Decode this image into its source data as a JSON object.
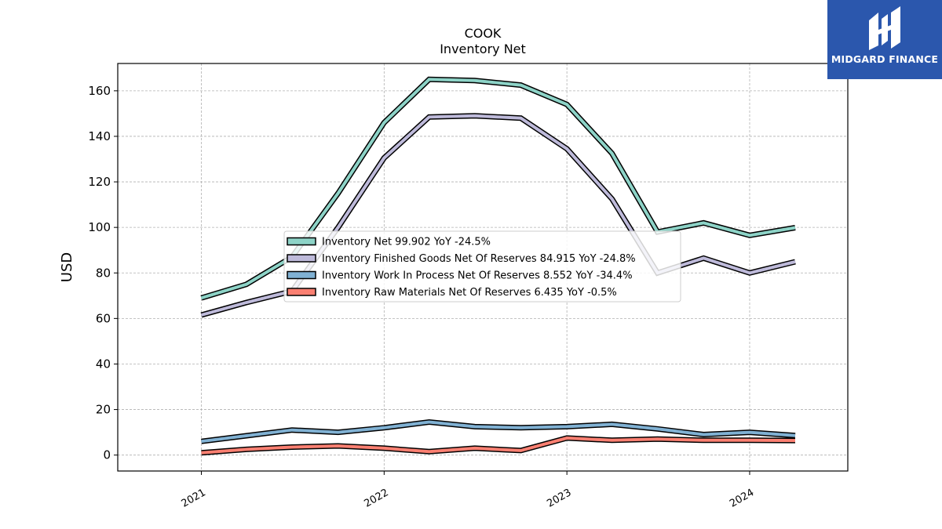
{
  "chart_data": {
    "type": "line",
    "title": "COOK",
    "subtitle": "Inventory Net",
    "ylabel": "USD",
    "xlabel": "",
    "ylim": [
      -7,
      172
    ],
    "yticks": [
      0,
      20,
      40,
      60,
      80,
      100,
      120,
      140,
      160
    ],
    "xticks": [
      "2021",
      "2022",
      "2023",
      "2024"
    ],
    "grid": true,
    "legend_position": "center",
    "x": [
      "2021-01-01",
      "2021-04-01",
      "2021-07-01",
      "2021-10-01",
      "2022-01-01",
      "2022-04-01",
      "2022-07-01",
      "2022-10-01",
      "2023-01-01",
      "2023-04-01",
      "2023-07-01",
      "2023-10-01",
      "2024-01-01",
      "2024-04-01"
    ],
    "series": [
      {
        "name": "Inventory Net",
        "legend": "Inventory Net  99.902 YoY -24.5%",
        "color": "#8dd3c7",
        "values": [
          69,
          75,
          87,
          115,
          146,
          165,
          164.5,
          162.5,
          154,
          132.5,
          98,
          102,
          96.5,
          99.9
        ]
      },
      {
        "name": "Inventory Finished Goods Net Of Reserves",
        "legend": "Inventory Finished Goods Net Of Reserves  84.915 YoY -24.8%",
        "color": "#bebada",
        "values": [
          61.5,
          67,
          72,
          100,
          130.5,
          148.5,
          149,
          148,
          134.5,
          112.5,
          80,
          86.5,
          80,
          84.9
        ]
      },
      {
        "name": "Inventory Work In Process Net Of Reserves",
        "legend": "Inventory Work In Process Net Of Reserves  8.552 YoY -34.4%",
        "color": "#80b1d3",
        "values": [
          6,
          8.5,
          11,
          10,
          12,
          14.5,
          12.5,
          12,
          12.5,
          13.5,
          11.5,
          9,
          10,
          8.55
        ]
      },
      {
        "name": "Inventory Raw Materials Net Of Reserves",
        "legend": "Inventory Raw Materials Net Of Reserves  6.435 YoY -0.5%",
        "color": "#fb8072",
        "values": [
          1,
          2.5,
          3.5,
          4,
          3,
          1.5,
          3,
          2,
          7.5,
          6.5,
          7,
          6.5,
          6.5,
          6.4
        ]
      }
    ]
  },
  "logo": {
    "text": "MIDGARD FINANCE",
    "icon": "midgard-logo-icon",
    "bg_color": "#2b57ad"
  }
}
